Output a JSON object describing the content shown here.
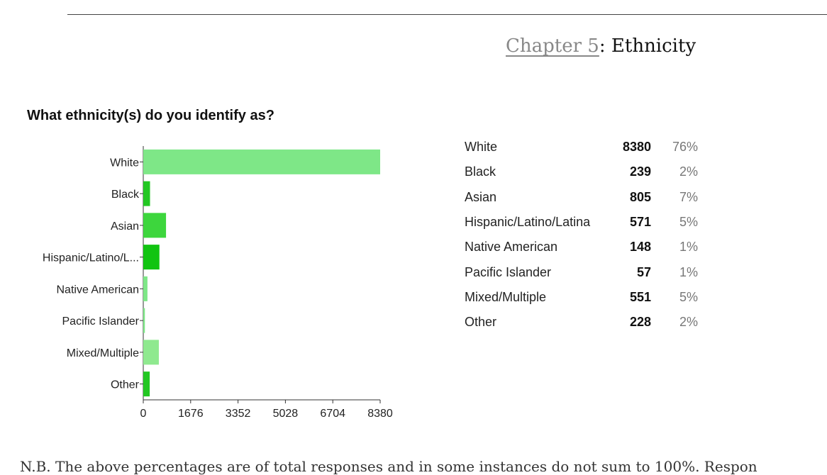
{
  "chapter": {
    "link_text": "Chapter 5",
    "separator": ": ",
    "title": "Ethnicity"
  },
  "chart_data": {
    "type": "bar",
    "orientation": "horizontal",
    "title": "What ethnicity(s) do you identify as?",
    "categories": [
      "White",
      "Black",
      "Asian",
      "Hispanic/Latino/L...",
      "Native American",
      "Pacific Islander",
      "Mixed/Multiple",
      "Other"
    ],
    "values": [
      8380,
      239,
      805,
      571,
      148,
      57,
      551,
      228
    ],
    "colors": [
      "#7ee787",
      "#22c722",
      "#3dd63d",
      "#11c411",
      "#7ee787",
      "#7ee787",
      "#8fe98f",
      "#22c722"
    ],
    "xlim": [
      0,
      8380
    ],
    "xticks": [
      "0",
      "1676",
      "3352",
      "5028",
      "6704",
      "8380"
    ],
    "grid": false,
    "legend": "none"
  },
  "summary": {
    "rows": [
      {
        "label": "White",
        "count": "8380",
        "percent": "76%"
      },
      {
        "label": "Black",
        "count": "239",
        "percent": "2%"
      },
      {
        "label": "Asian",
        "count": "805",
        "percent": "7%"
      },
      {
        "label": "Hispanic/Latino/Latina",
        "count": "571",
        "percent": "5%"
      },
      {
        "label": "Native American",
        "count": "148",
        "percent": "1%"
      },
      {
        "label": "Pacific Islander",
        "count": "57",
        "percent": "1%"
      },
      {
        "label": "Mixed/Multiple",
        "count": "551",
        "percent": "5%"
      },
      {
        "label": "Other",
        "count": "228",
        "percent": "2%"
      }
    ]
  },
  "footnote": "N.B. The above percentages are of total responses and in some instances do not sum to 100%. Respon"
}
